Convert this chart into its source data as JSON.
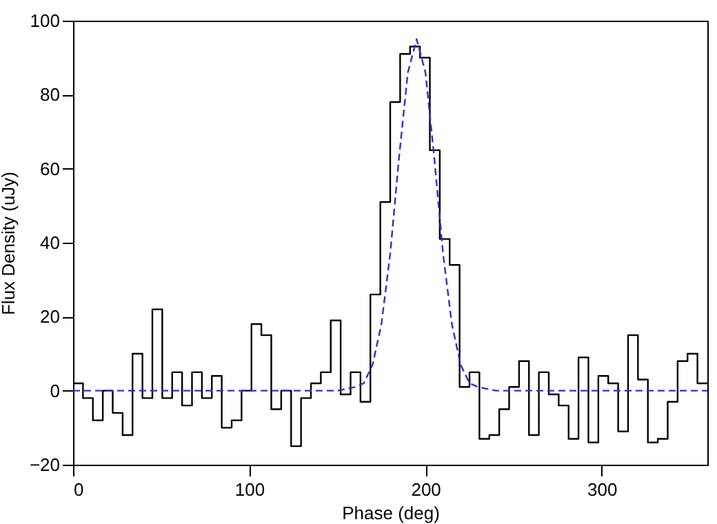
{
  "chart_data": {
    "type": "histogram",
    "xlabel": "Phase (deg)",
    "ylabel": "Flux Density (uJy)",
    "bins": [
      0,
      5.625,
      11.25,
      16.875,
      22.5,
      28.125,
      33.75,
      39.375,
      45,
      50.625,
      56.25,
      61.875,
      67.5,
      73.125,
      78.75,
      84.375,
      90,
      95.625,
      101.25,
      106.875,
      112.5,
      118.125,
      123.75,
      129.375,
      135,
      140.625,
      146.25,
      151.875,
      157.5,
      163.125,
      168.75,
      174.375,
      180,
      185.625,
      191.25,
      196.875,
      202.5,
      208.125,
      213.75,
      219.375,
      225,
      230.625,
      236.25,
      241.875,
      247.5,
      253.125,
      258.75,
      264.375,
      270,
      275.625,
      281.25,
      286.875,
      292.5,
      298.125,
      303.75,
      309.375,
      315,
      320.625,
      326.25,
      331.875,
      337.5,
      343.125,
      348.75,
      354.375,
      360
    ],
    "series": [
      {
        "color": "#000000",
        "values": [
          2,
          -2,
          -8,
          0,
          -6,
          -12,
          10,
          -2,
          22,
          -2,
          5,
          -4,
          5,
          -2,
          4,
          -10,
          -8,
          0,
          18,
          15,
          -5,
          0,
          -15,
          -2,
          2,
          5,
          19,
          -1,
          5,
          -3,
          26,
          51,
          78,
          91,
          93,
          90,
          65,
          41,
          34,
          1,
          5,
          -13,
          -12,
          -5,
          1,
          8,
          -12,
          5,
          -1,
          -4,
          -13,
          9,
          -14,
          4,
          2,
          -11,
          15,
          3,
          -14,
          -13,
          -3,
          8,
          10,
          2
        ]
      },
      {
        "type": "line",
        "color": "#3030d0",
        "line_style": "dashed",
        "x": [
          0,
          150,
          160,
          165,
          170,
          175,
          180,
          185,
          190,
          195,
          200,
          205,
          210,
          215,
          220,
          225,
          230,
          240,
          360
        ],
        "values": [
          0,
          0,
          1,
          2,
          7,
          18,
          37,
          63,
          86,
          95,
          86,
          63,
          37,
          18,
          7,
          2,
          1,
          0,
          0
        ]
      }
    ],
    "xlim": [
      0,
      360
    ],
    "xticks": [
      0,
      100,
      200,
      300
    ],
    "ylim": [
      -20,
      100
    ],
    "yticks": [
      -20,
      0,
      20,
      40,
      60,
      80,
      100
    ]
  }
}
